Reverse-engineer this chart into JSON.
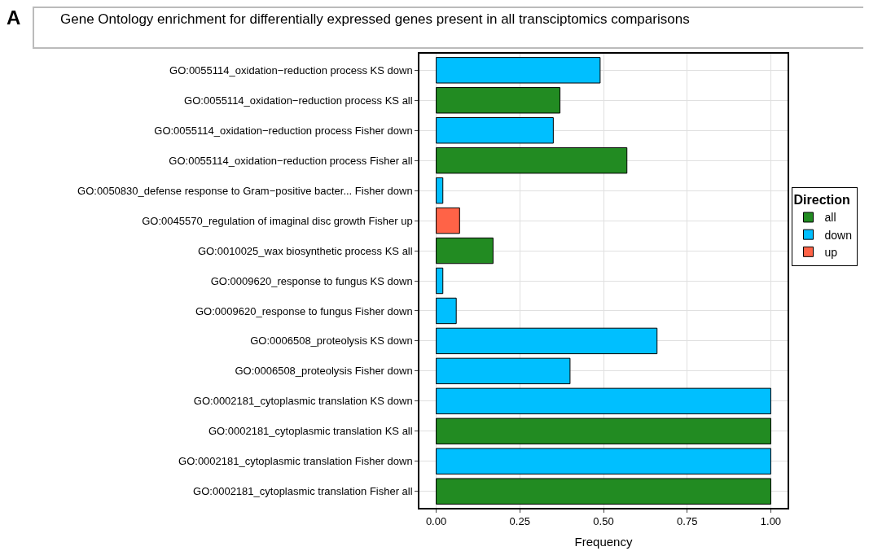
{
  "chart_data": {
    "type": "bar",
    "orientation": "horizontal",
    "title": "Gene Ontology enrichment for differentially expressed genes present in all transciptomics comparisons",
    "annotations": [
      "A"
    ],
    "xlabel": "Frequency",
    "legend_title": "Direction",
    "legend": "right",
    "grid": true,
    "categories": [
      "GO:0055114_oxidation−reduction process KS down",
      "GO:0055114_oxidation−reduction process KS all",
      "GO:0055114_oxidation−reduction process Fisher down",
      "GO:0055114_oxidation−reduction process Fisher all",
      "GO:0050830_defense response to Gram−positive bacter... Fisher down",
      "GO:0045570_regulation of imaginal disc growth Fisher up",
      "GO:0010025_wax biosynthetic process KS all",
      "GO:0009620_response to fungus KS down",
      "GO:0009620_response to fungus Fisher down",
      "GO:0006508_proteolysis KS down",
      "GO:0006508_proteolysis Fisher down",
      "GO:0002181_cytoplasmic translation KS down",
      "GO:0002181_cytoplasmic translation KS all",
      "GO:0002181_cytoplasmic translation Fisher down",
      "GO:0002181_cytoplasmic translation Fisher all"
    ],
    "series": [
      {
        "name": "all",
        "color": "#228b22",
        "values": [
          null,
          0.37,
          null,
          0.57,
          null,
          null,
          0.17,
          null,
          null,
          null,
          null,
          null,
          1.0,
          null,
          1.0
        ]
      },
      {
        "name": "down",
        "color": "#00bfff",
        "values": [
          0.49,
          null,
          0.35,
          null,
          0.02,
          null,
          null,
          0.02,
          0.06,
          0.66,
          0.4,
          1.0,
          null,
          1.0,
          null
        ]
      },
      {
        "name": "up",
        "color": "#ff6347",
        "values": [
          null,
          null,
          null,
          null,
          null,
          0.07,
          null,
          null,
          null,
          null,
          null,
          null,
          null,
          null,
          null
        ]
      }
    ],
    "xlim": [
      -0.05,
      1.05
    ],
    "xticks": [
      {
        "value": 0,
        "label": "0.00"
      },
      {
        "value": 0.25,
        "label": "0.25"
      },
      {
        "value": 0.5,
        "label": "0.50"
      },
      {
        "value": 0.75,
        "label": "0.75"
      },
      {
        "value": 1,
        "label": "1.00"
      }
    ]
  }
}
